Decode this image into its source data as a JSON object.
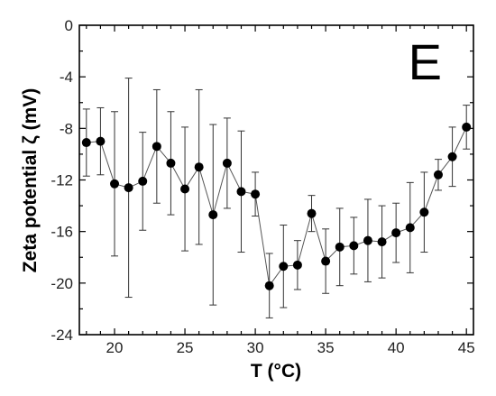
{
  "chart_data": {
    "type": "scatter",
    "panel_label": "E",
    "xlabel": "T (°C)",
    "ylabel": "Zeta potential ζ (mV)",
    "xlim": [
      17.5,
      45.5
    ],
    "ylim": [
      -24,
      0
    ],
    "xticks": [
      20,
      25,
      30,
      35,
      40,
      45
    ],
    "yticks": [
      0,
      -4,
      -8,
      -12,
      -16,
      -20,
      -24
    ],
    "grid": false,
    "series": [
      {
        "x": [
          18,
          19,
          20,
          21,
          22,
          23,
          24,
          25,
          26,
          27,
          28,
          29,
          30,
          31,
          32,
          33,
          34,
          35,
          36,
          37,
          38,
          39,
          40,
          41,
          42,
          43,
          44,
          45
        ],
        "y": [
          -9.1,
          -9.0,
          -12.3,
          -12.6,
          -12.1,
          -9.4,
          -10.7,
          -12.7,
          -11.0,
          -14.7,
          -10.7,
          -12.9,
          -13.1,
          -20.2,
          -18.7,
          -18.6,
          -14.6,
          -18.3,
          -17.2,
          -17.1,
          -16.7,
          -16.8,
          -16.1,
          -15.7,
          -14.5,
          -11.6,
          -10.2,
          -7.9
        ],
        "yerr": [
          2.6,
          2.6,
          5.6,
          8.5,
          3.8,
          4.4,
          4.0,
          4.8,
          6.0,
          7.0,
          3.5,
          4.7,
          1.7,
          2.5,
          3.2,
          1.9,
          1.4,
          2.5,
          3.0,
          2.2,
          3.2,
          2.8,
          2.3,
          3.5,
          3.1,
          1.2,
          2.3,
          1.7
        ]
      }
    ]
  }
}
